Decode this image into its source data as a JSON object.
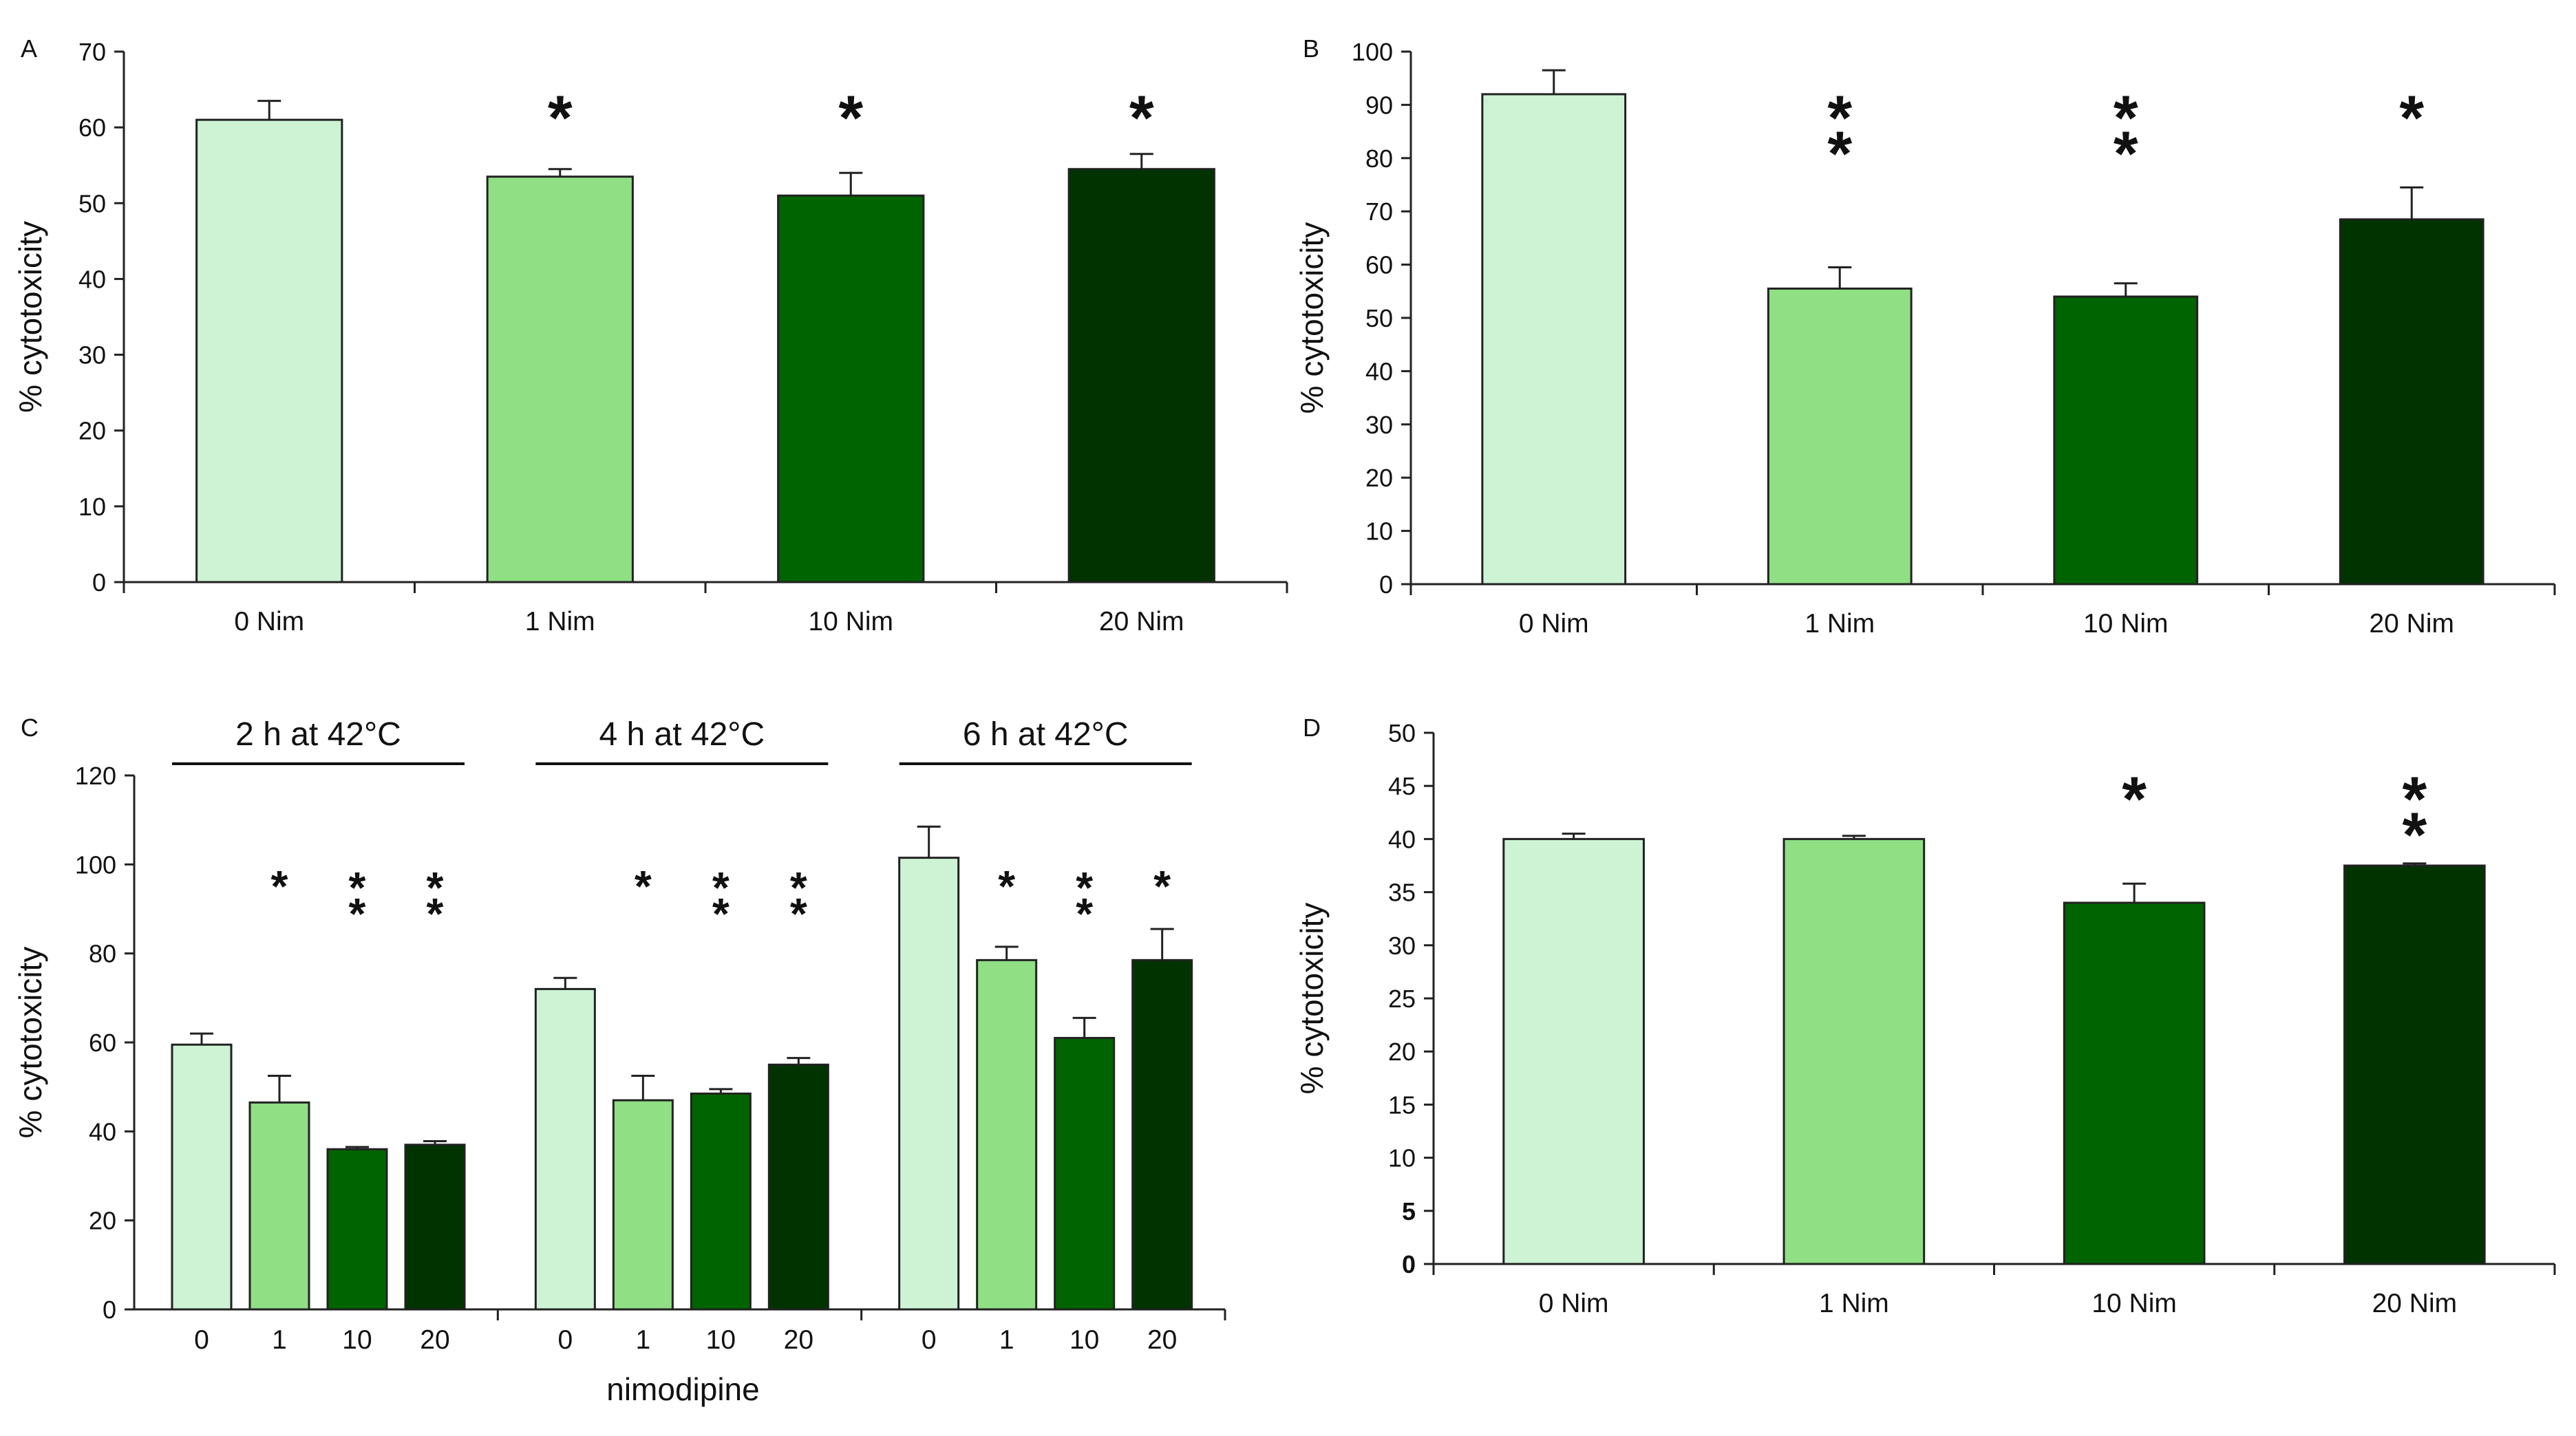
{
  "colors": [
    "#cdf3d4",
    "#90df85",
    "#006400",
    "#003300"
  ],
  "chart_data": [
    {
      "panel": "A",
      "type": "bar",
      "ylabel": "% cytotoxicity",
      "xlabel": "",
      "ylim": [
        0,
        70
      ],
      "yticks": [
        "0",
        "10",
        "20",
        "30",
        "40",
        "50",
        "60",
        "70"
      ],
      "categories": [
        "0 Nim",
        "1 Nim",
        "10 Nim",
        "20 Nim"
      ],
      "values": [
        61,
        53.5,
        51,
        54.5
      ],
      "errors": [
        2.5,
        1,
        3,
        2
      ],
      "significance": [
        "",
        "*",
        "*",
        "*"
      ]
    },
    {
      "panel": "B",
      "type": "bar",
      "ylabel": "% cytotoxicity",
      "xlabel": "",
      "ylim": [
        0,
        100
      ],
      "yticks": [
        "0",
        "10",
        "20",
        "30",
        "40",
        "50",
        "60",
        "70",
        "80",
        "90",
        "100"
      ],
      "categories": [
        "0 Nim",
        "1 Nim",
        "10 Nim",
        "20 Nim"
      ],
      "values": [
        92,
        55.5,
        54,
        68.5
      ],
      "errors": [
        4.5,
        4,
        2.5,
        6
      ],
      "significance": [
        "",
        "**",
        "**",
        "*"
      ]
    },
    {
      "panel": "C",
      "type": "bar",
      "ylabel": "% cytotoxicity",
      "xlabel": "nimodipine",
      "ylim": [
        0,
        120
      ],
      "yticks": [
        "0",
        "20",
        "40",
        "60",
        "80",
        "100",
        "120"
      ],
      "groups": [
        {
          "label": "2 h at 42°C",
          "categories": [
            "0",
            "1",
            "10",
            "20"
          ],
          "values": [
            59.5,
            46.5,
            36,
            37
          ],
          "errors": [
            2.5,
            6,
            0.5,
            0.8
          ],
          "significance": [
            "",
            "*",
            "**",
            "**"
          ]
        },
        {
          "label": "4 h at 42°C",
          "categories": [
            "0",
            "1",
            "10",
            "20"
          ],
          "values": [
            72,
            47,
            48.5,
            55
          ],
          "errors": [
            2.5,
            5.5,
            1,
            1.5
          ],
          "significance": [
            "",
            "*",
            "**",
            "**"
          ]
        },
        {
          "label": "6 h at 42°C",
          "categories": [
            "0",
            "1",
            "10",
            "20"
          ],
          "values": [
            101.5,
            78.5,
            61,
            78.5
          ],
          "errors": [
            7,
            3,
            4.5,
            7
          ],
          "significance": [
            "",
            "*",
            "**",
            "*"
          ]
        }
      ]
    },
    {
      "panel": "D",
      "type": "bar",
      "ylabel": "% cytotoxicity",
      "xlabel": "",
      "ylim": [
        0,
        50
      ],
      "yticks": [
        "0",
        "5",
        "10",
        "15",
        "20",
        "25",
        "30",
        "35",
        "40",
        "45",
        "50"
      ],
      "bold_ticks": [
        "0",
        "5"
      ],
      "categories": [
        "0 Nim",
        "1 Nim",
        "10 Nim",
        "20 Nim"
      ],
      "values": [
        40,
        40,
        34,
        37.5
      ],
      "errors": [
        0.5,
        0.3,
        1.8,
        0.2
      ],
      "significance": [
        "",
        "",
        "*",
        "**"
      ]
    }
  ]
}
